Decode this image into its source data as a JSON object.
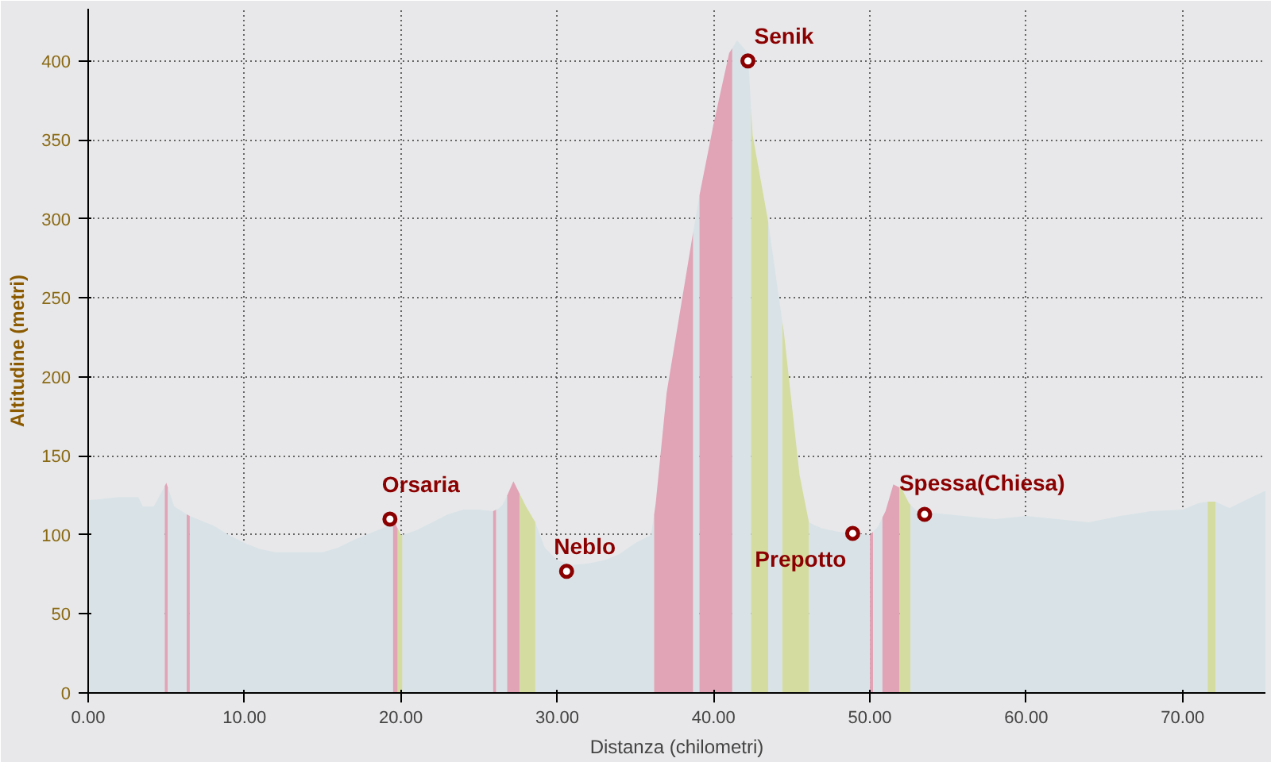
{
  "chart_data": {
    "type": "area",
    "xlabel": "Distanza (chilometri)",
    "ylabel": "Altitudine (metri)",
    "series": [
      {
        "color": "#d9e3e7",
        "x": [
          0,
          2,
          3.2,
          3.5,
          4.2,
          4.9
        ],
        "values": [
          122,
          124,
          124,
          118,
          118,
          131
        ]
      },
      {
        "color": "#e0a4b6",
        "x": [
          4.9,
          5,
          5.1
        ],
        "values": [
          131,
          133,
          130
        ]
      },
      {
        "color": "#d9e3e7",
        "x": [
          5.1,
          5.5,
          6.3
        ],
        "values": [
          130,
          118,
          113
        ]
      },
      {
        "color": "#e0a4b6",
        "x": [
          6.3,
          6.5
        ],
        "values": [
          113,
          112
        ]
      },
      {
        "color": "#d9e3e7",
        "x": [
          6.5,
          8,
          9,
          10,
          11,
          12,
          13,
          14,
          15,
          16,
          17,
          18,
          19,
          19.5
        ],
        "values": [
          112,
          106,
          100,
          95,
          91,
          89,
          89,
          89,
          89,
          92,
          97,
          101,
          105,
          110
        ]
      },
      {
        "color": "#e0a4b6",
        "x": [
          19.5,
          19.8
        ],
        "values": [
          110,
          104
        ]
      },
      {
        "color": "#d4dca0",
        "x": [
          19.8,
          20,
          20.1
        ],
        "values": [
          104,
          100,
          100
        ]
      },
      {
        "color": "#d9e3e7",
        "x": [
          20.1,
          21,
          22,
          23,
          24,
          25,
          25.9
        ],
        "values": [
          100,
          103,
          108,
          113,
          116,
          116,
          115
        ]
      },
      {
        "color": "#e0a4b6",
        "x": [
          25.9,
          26.1
        ],
        "values": [
          115,
          116
        ]
      },
      {
        "color": "#d9e3e7",
        "x": [
          26.1,
          26.3,
          26.5,
          26.8
        ],
        "values": [
          116,
          117,
          119,
          125
        ]
      },
      {
        "color": "#e0a4b6",
        "x": [
          26.8,
          27.2,
          27.6
        ],
        "values": [
          125,
          134,
          126
        ]
      },
      {
        "color": "#d4dca0",
        "x": [
          27.6,
          28,
          28.6
        ],
        "values": [
          126,
          118,
          108
        ]
      },
      {
        "color": "#d9e3e7",
        "x": [
          28.6,
          29.2,
          30,
          31,
          32,
          33,
          34,
          35,
          36,
          36.2
        ],
        "values": [
          108,
          92,
          84,
          81,
          82,
          84,
          88,
          95,
          100,
          113
        ]
      },
      {
        "color": "#e0a4b6",
        "x": [
          36.2,
          36.3,
          37,
          38,
          38.7
        ],
        "values": [
          113,
          120,
          190,
          250,
          292
        ]
      },
      {
        "color": "#d9e3e7",
        "x": [
          38.7,
          39.1
        ],
        "values": [
          292,
          315
        ]
      },
      {
        "color": "#e0a4b6",
        "x": [
          39.1,
          40,
          41,
          41.2
        ],
        "values": [
          315,
          360,
          405,
          408
        ]
      },
      {
        "color": "#d9e3e7",
        "x": [
          41.2,
          41.5,
          42.2,
          42.4
        ],
        "values": [
          408,
          413,
          405,
          370
        ]
      },
      {
        "color": "#d4dca0",
        "x": [
          42.4,
          42.5,
          43.5
        ],
        "values": [
          370,
          353,
          298
        ]
      },
      {
        "color": "#d9e3e7",
        "x": [
          43.5,
          44.4
        ],
        "values": [
          298,
          235
        ]
      },
      {
        "color": "#d4dca0",
        "x": [
          44.4,
          44.5,
          45.5,
          46.1
        ],
        "values": [
          235,
          228,
          138,
          108
        ]
      },
      {
        "color": "#d9e3e7",
        "x": [
          46.1,
          46.5,
          47,
          48,
          49,
          50
        ],
        "values": [
          108,
          106,
          104,
          102,
          101,
          100
        ]
      },
      {
        "color": "#e0a4b6",
        "x": [
          50,
          50.2
        ],
        "values": [
          100,
          102
        ]
      },
      {
        "color": "#d9e3e7",
        "x": [
          50.2,
          50.5,
          50.8
        ],
        "values": [
          102,
          105,
          111
        ]
      },
      {
        "color": "#e0a4b6",
        "x": [
          50.8,
          51,
          51.5,
          51.9
        ],
        "values": [
          111,
          115,
          132,
          130
        ]
      },
      {
        "color": "#d4dca0",
        "x": [
          51.9,
          52,
          52.5,
          52.6
        ],
        "values": [
          130,
          130,
          120,
          119
        ]
      },
      {
        "color": "#d9e3e7",
        "x": [
          52.6,
          53,
          54,
          56,
          58,
          60,
          62,
          64,
          66,
          68,
          70,
          71,
          71.6
        ],
        "values": [
          119,
          115,
          114,
          112,
          110,
          112,
          110,
          108,
          112,
          115,
          116,
          120,
          121
        ]
      },
      {
        "color": "#d4dca0",
        "x": [
          71.6,
          72,
          72.1
        ],
        "values": [
          121,
          121,
          121
        ]
      },
      {
        "color": "#d9e3e7",
        "x": [
          72.1,
          73,
          74,
          75.3
        ],
        "values": [
          121,
          117,
          122,
          128
        ]
      }
    ],
    "xlim": [
      0,
      75.3
    ],
    "ylim": [
      0,
      433
    ],
    "xticks": [
      {
        "value": 0,
        "label": "0.00"
      },
      {
        "value": 10,
        "label": "10.00"
      },
      {
        "value": 20,
        "label": "20.00"
      },
      {
        "value": 30,
        "label": "30.00"
      },
      {
        "value": 40,
        "label": "40.00"
      },
      {
        "value": 50,
        "label": "50.00"
      },
      {
        "value": 60,
        "label": "60.00"
      },
      {
        "value": 70,
        "label": "70.00"
      }
    ],
    "yticks": [
      0,
      50,
      100,
      150,
      200,
      250,
      300,
      350,
      400
    ],
    "grid": true,
    "annotations": [
      {
        "text": "Orsaria",
        "x": 19.3,
        "y": 110
      },
      {
        "text": "Neblo",
        "x": 30.6,
        "y": 77
      },
      {
        "text": "Senik",
        "x": 42.2,
        "y": 400
      },
      {
        "text": "Prepotto",
        "x": 48.9,
        "y": 101
      },
      {
        "text": "Spessa(Chiesa)",
        "x": 53.5,
        "y": 113
      }
    ]
  }
}
